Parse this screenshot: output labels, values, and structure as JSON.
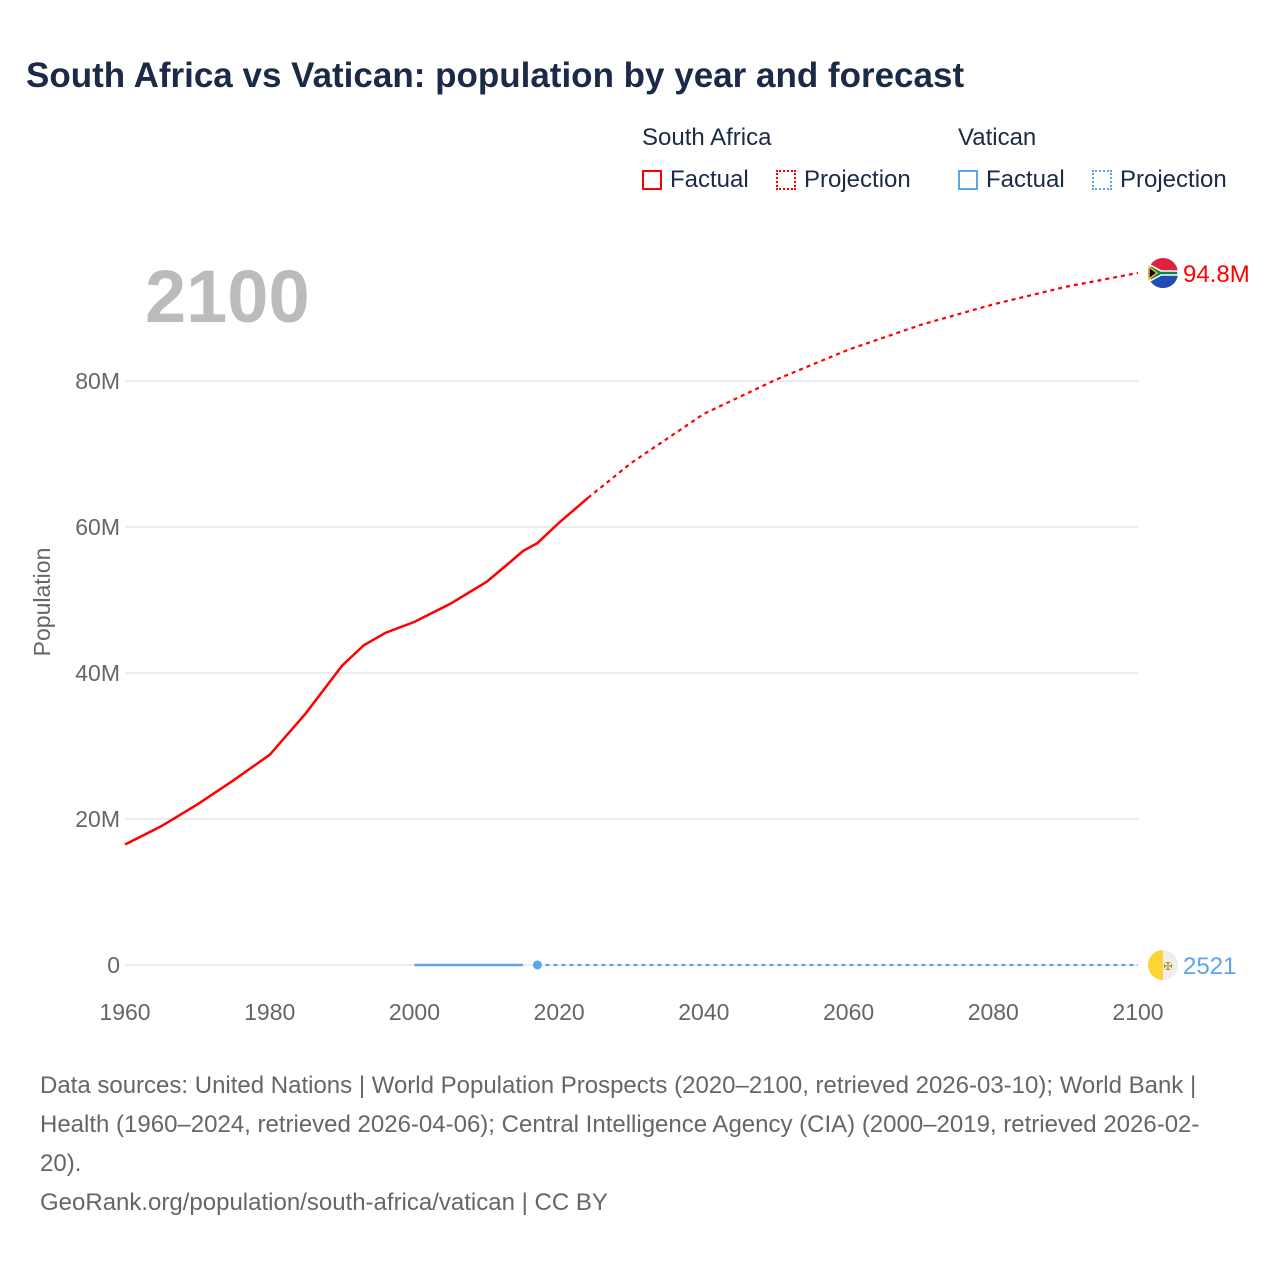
{
  "title": "South Africa vs Vatican: population by year and forecast",
  "legend": {
    "groups": [
      {
        "name": "South Africa",
        "factual": "Factual",
        "projection": "Projection",
        "color": "#ff0000"
      },
      {
        "name": "Vatican",
        "factual": "Factual",
        "projection": "Projection",
        "color": "#5aa5ee"
      }
    ]
  },
  "chart_data": {
    "type": "line",
    "title": "South Africa vs Vatican: population by year and forecast",
    "ylabel": "Population",
    "xlabel": "",
    "year_label": "2100",
    "xlim": [
      1960,
      2100
    ],
    "ylim": [
      0,
      80000000
    ],
    "x_ticks": [
      "1960",
      "1980",
      "2000",
      "2020",
      "2040",
      "2060",
      "2080",
      "2100"
    ],
    "y_ticks": [
      {
        "v": 0,
        "label": "0"
      },
      {
        "v": 20000000,
        "label": "20M"
      },
      {
        "v": 40000000,
        "label": "40M"
      },
      {
        "v": 60000000,
        "label": "60M"
      },
      {
        "v": 80000000,
        "label": "80M"
      }
    ],
    "series": [
      {
        "name": "South Africa",
        "color": "#ff0000",
        "end_label": "94.8M",
        "factual": [
          [
            1960,
            16.5
          ],
          [
            1965,
            19.0
          ],
          [
            1970,
            22.0
          ],
          [
            1975,
            25.3
          ],
          [
            1980,
            28.8
          ],
          [
            1985,
            34.5
          ],
          [
            1990,
            41.0
          ],
          [
            1993,
            43.8
          ],
          [
            1996,
            45.5
          ],
          [
            2000,
            47.0
          ],
          [
            2005,
            49.5
          ],
          [
            2010,
            52.5
          ],
          [
            2013,
            55.0
          ],
          [
            2015,
            56.7
          ],
          [
            2017,
            57.8
          ],
          [
            2020,
            60.6
          ],
          [
            2024,
            64.0
          ]
        ],
        "projection": [
          [
            2024,
            64.0
          ],
          [
            2030,
            68.8
          ],
          [
            2040,
            75.5
          ],
          [
            2050,
            80.2
          ],
          [
            2060,
            84.3
          ],
          [
            2070,
            87.7
          ],
          [
            2080,
            90.5
          ],
          [
            2090,
            92.9
          ],
          [
            2100,
            94.8
          ]
        ]
      },
      {
        "name": "Vatican",
        "color": "#5aa5ee",
        "end_label": "2521",
        "factual": [
          [
            2000,
            0.0009
          ],
          [
            2015,
            0.0008
          ]
        ],
        "marker": [
          2017,
          0.0008
        ],
        "projection": [
          [
            2017,
            0.0008
          ],
          [
            2100,
            0.0025
          ]
        ]
      }
    ]
  },
  "footer": {
    "sources": "Data sources: United Nations | World Population Prospects (2020–2100, retrieved 2026-03-10); World Bank | Health (1960–2024, retrieved 2026-04-06); Central Intelligence Agency (CIA) (2000–2019, retrieved 2026-02-20).",
    "credit": "GeoRank.org/population/south-africa/vatican | CC BY"
  }
}
